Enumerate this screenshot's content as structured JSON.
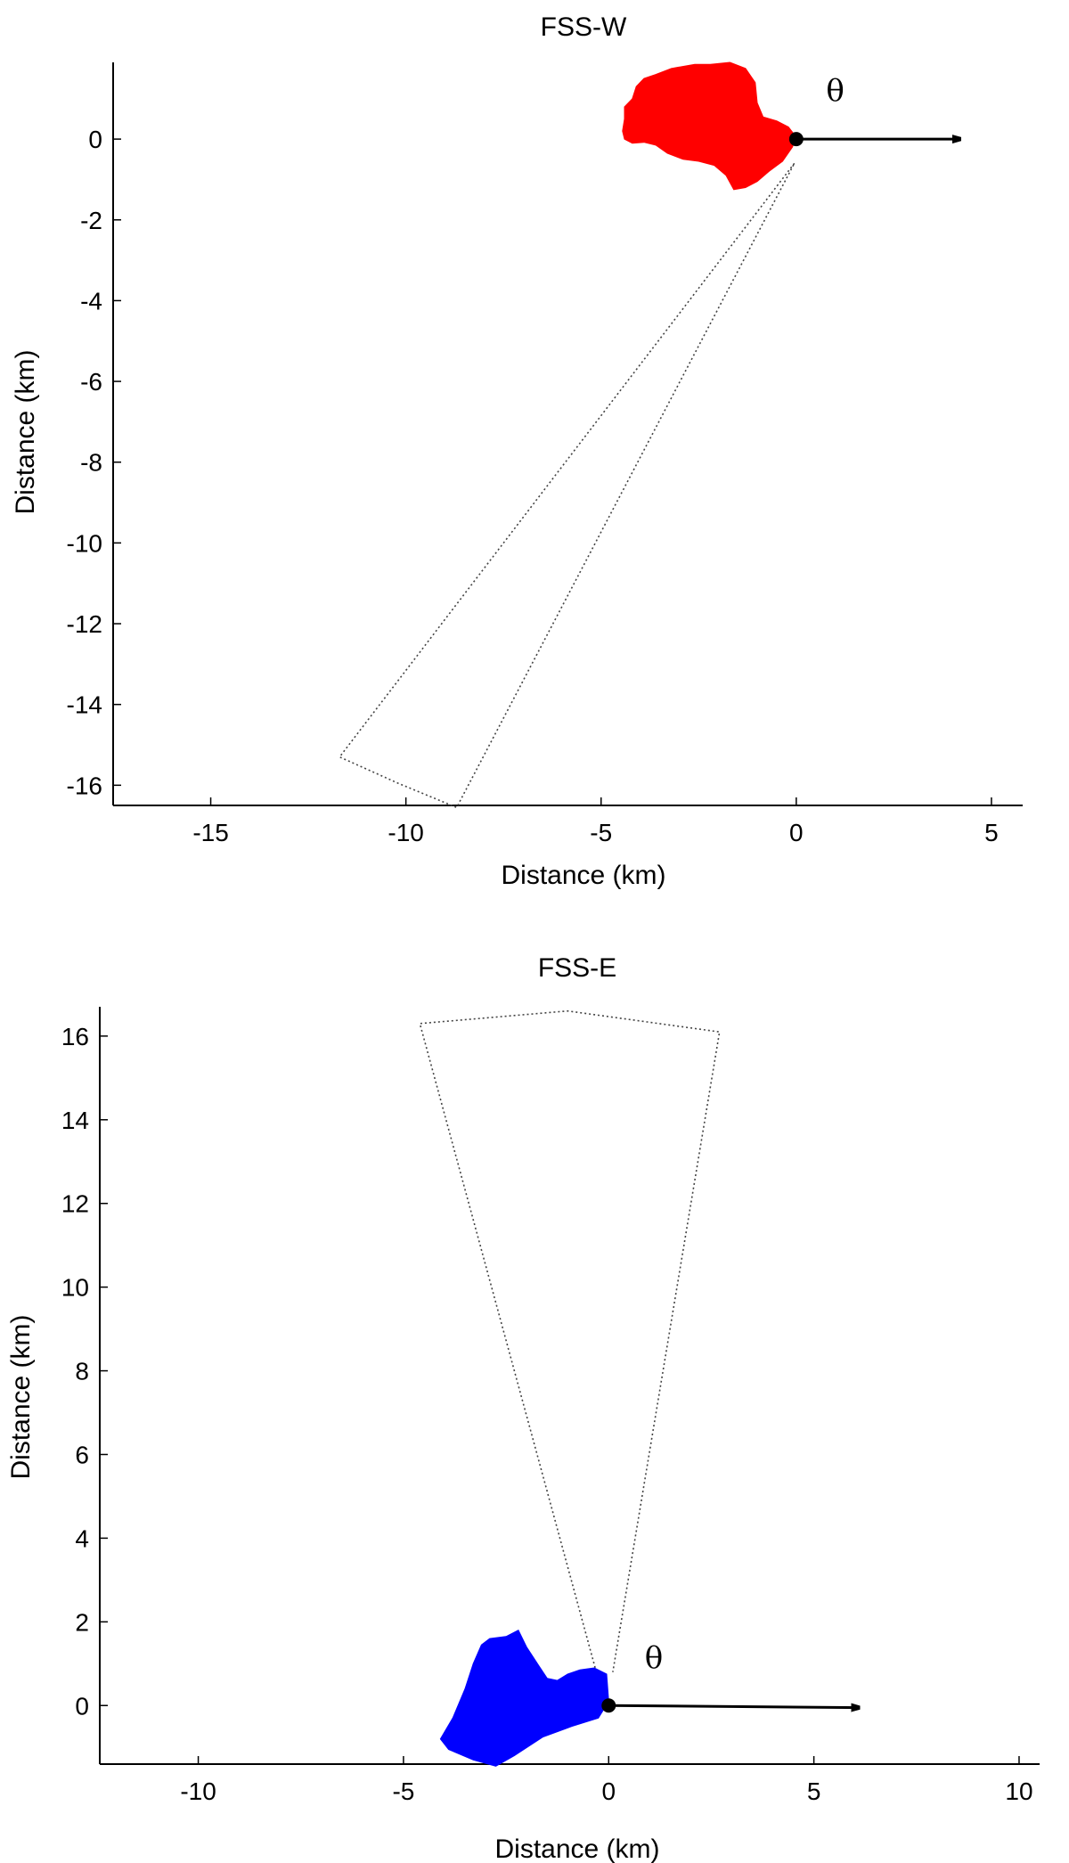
{
  "chart_data": [
    {
      "type": "scatter",
      "title": "FSS-W",
      "xlabel": "Distance (km)",
      "ylabel": "Distance (km)",
      "xlim": [
        -17.5,
        5.8
      ],
      "ylim": [
        -16.5,
        1.9
      ],
      "xticks": [
        -15,
        -10,
        -5,
        0,
        5
      ],
      "yticks": [
        0,
        -2,
        -4,
        -6,
        -8,
        -10,
        -12,
        -14,
        -16
      ],
      "grid": false,
      "annotation": "θ",
      "colors": {
        "region": "#ff0000",
        "outline": "#000000"
      },
      "origin": [
        0,
        0
      ],
      "arrow": {
        "from": [
          0,
          0
        ],
        "to": [
          4.2,
          0
        ]
      },
      "theta_pos": [
        1.0,
        0.95
      ],
      "sector": [
        [
          -0.05,
          -0.6
        ],
        [
          -11.7,
          -15.3
        ],
        [
          -10.2,
          -15.95
        ],
        [
          -8.7,
          -16.55
        ],
        [
          -0.05,
          -0.6
        ]
      ],
      "region": [
        [
          -4.4,
          0.5
        ],
        [
          -4.45,
          0.2
        ],
        [
          -4.4,
          0.0
        ],
        [
          -4.2,
          -0.1
        ],
        [
          -3.9,
          -0.08
        ],
        [
          -3.6,
          -0.15
        ],
        [
          -3.3,
          -0.35
        ],
        [
          -2.9,
          -0.5
        ],
        [
          -2.5,
          -0.55
        ],
        [
          -2.1,
          -0.65
        ],
        [
          -1.8,
          -0.9
        ],
        [
          -1.6,
          -1.25
        ],
        [
          -1.3,
          -1.2
        ],
        [
          -1.0,
          -1.05
        ],
        [
          -0.7,
          -0.8
        ],
        [
          -0.35,
          -0.55
        ],
        [
          -0.1,
          -0.2
        ],
        [
          0.0,
          0.05
        ],
        [
          -0.2,
          0.3
        ],
        [
          -0.5,
          0.45
        ],
        [
          -0.85,
          0.55
        ],
        [
          -1.0,
          0.9
        ],
        [
          -1.05,
          1.4
        ],
        [
          -1.3,
          1.75
        ],
        [
          -1.7,
          1.9
        ],
        [
          -2.2,
          1.85
        ],
        [
          -2.6,
          1.85
        ],
        [
          -3.2,
          1.75
        ],
        [
          -3.6,
          1.6
        ],
        [
          -3.9,
          1.5
        ],
        [
          -4.1,
          1.3
        ],
        [
          -4.2,
          1.0
        ],
        [
          -4.4,
          0.8
        ]
      ]
    },
    {
      "type": "scatter",
      "title": "FSS-E",
      "xlabel": "Distance (km)",
      "ylabel": "Distance (km)",
      "xlim": [
        -12.4,
        10.5
      ],
      "ylim": [
        -1.4,
        16.7
      ],
      "xticks": [
        -10,
        -5,
        0,
        5,
        10
      ],
      "yticks": [
        0,
        2,
        4,
        6,
        8,
        10,
        12,
        14,
        16
      ],
      "grid": false,
      "annotation": "θ",
      "colors": {
        "region": "#0000ff",
        "outline": "#000000"
      },
      "origin": [
        0,
        0
      ],
      "arrow": {
        "from": [
          0,
          0
        ],
        "to": [
          6.1,
          -0.05
        ]
      },
      "theta_pos": [
        1.1,
        0.9
      ],
      "sector": [
        [
          -0.3,
          0.8
        ],
        [
          -4.6,
          16.3
        ],
        [
          -1.0,
          16.6
        ],
        [
          2.7,
          16.1
        ],
        [
          0.1,
          0.8
        ]
      ],
      "region": [
        [
          -4.1,
          -0.8
        ],
        [
          -3.8,
          -0.3
        ],
        [
          -3.5,
          0.4
        ],
        [
          -3.3,
          1.0
        ],
        [
          -3.1,
          1.45
        ],
        [
          -2.9,
          1.6
        ],
        [
          -2.5,
          1.65
        ],
        [
          -2.2,
          1.8
        ],
        [
          -2.0,
          1.4
        ],
        [
          -1.7,
          0.95
        ],
        [
          -1.5,
          0.65
        ],
        [
          -1.25,
          0.6
        ],
        [
          -1.0,
          0.75
        ],
        [
          -0.7,
          0.85
        ],
        [
          -0.35,
          0.9
        ],
        [
          -0.05,
          0.75
        ],
        [
          0.0,
          0.1
        ],
        [
          -0.25,
          -0.3
        ],
        [
          -0.9,
          -0.5
        ],
        [
          -1.6,
          -0.75
        ],
        [
          -2.3,
          -1.2
        ],
        [
          -2.75,
          -1.45
        ],
        [
          -3.3,
          -1.3
        ],
        [
          -3.9,
          -1.05
        ]
      ]
    }
  ]
}
